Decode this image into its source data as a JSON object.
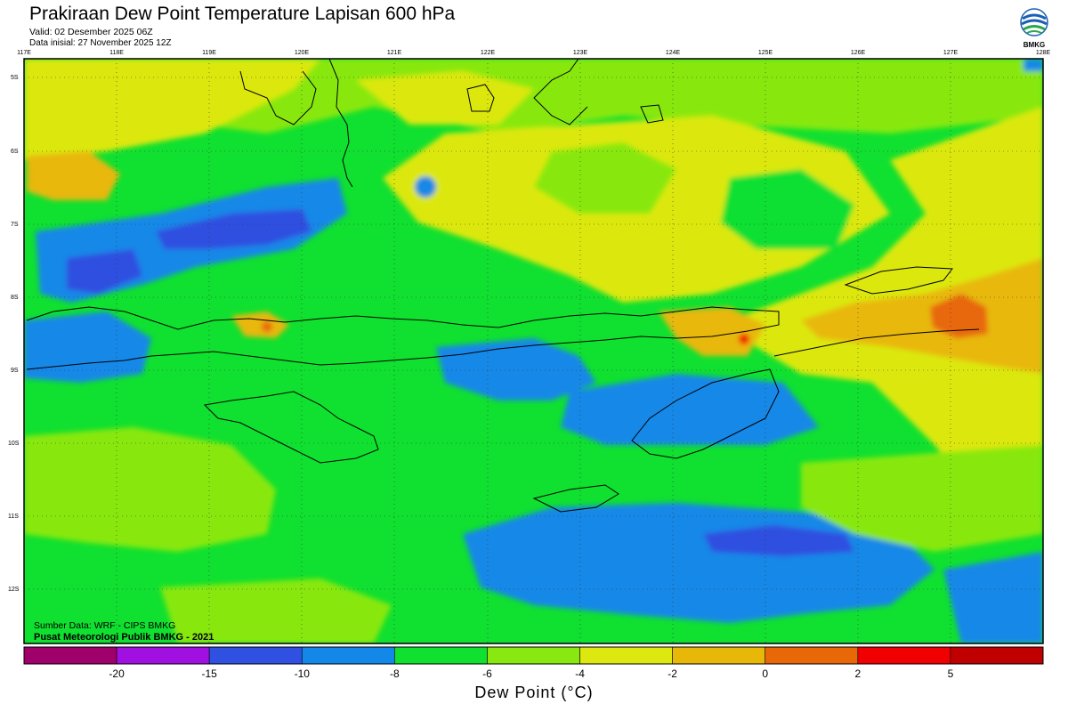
{
  "header": {
    "title": "Prakiraan Dew Point Temperature Lapisan 600 hPa",
    "valid": "Valid: 02 Desember 2025 06Z",
    "init": "Data inisial: 27 November 2025 12Z"
  },
  "logo": {
    "text": "BMKG",
    "icon": "bmkg-logo-icon"
  },
  "map": {
    "lon_labels": [
      "117E",
      "118E",
      "119E",
      "120E",
      "121E",
      "122E",
      "123E",
      "124E",
      "125E",
      "126E",
      "127E",
      "128E"
    ],
    "lat_labels": [
      "5S",
      "6S",
      "7S",
      "8S",
      "9S",
      "10S",
      "11S",
      "12S"
    ],
    "background_color": "#10E030"
  },
  "credits": {
    "source": "Sumber Data: WRF - CIPS BMKG",
    "publisher": "Pusat Meteorologi Publik BMKG - 2021"
  },
  "colorbar": {
    "title": "Dew Point (°C)",
    "colors": [
      "#A0006A",
      "#A010E0",
      "#2F50E0",
      "#1488E8",
      "#10E030",
      "#88E810",
      "#DCE810",
      "#E8B808",
      "#E86808",
      "#F00000",
      "#C00000"
    ],
    "labels": [
      "-20",
      "-15",
      "-10",
      "-8",
      "-6",
      "-4",
      "-2",
      "0",
      "2",
      "5"
    ]
  }
}
